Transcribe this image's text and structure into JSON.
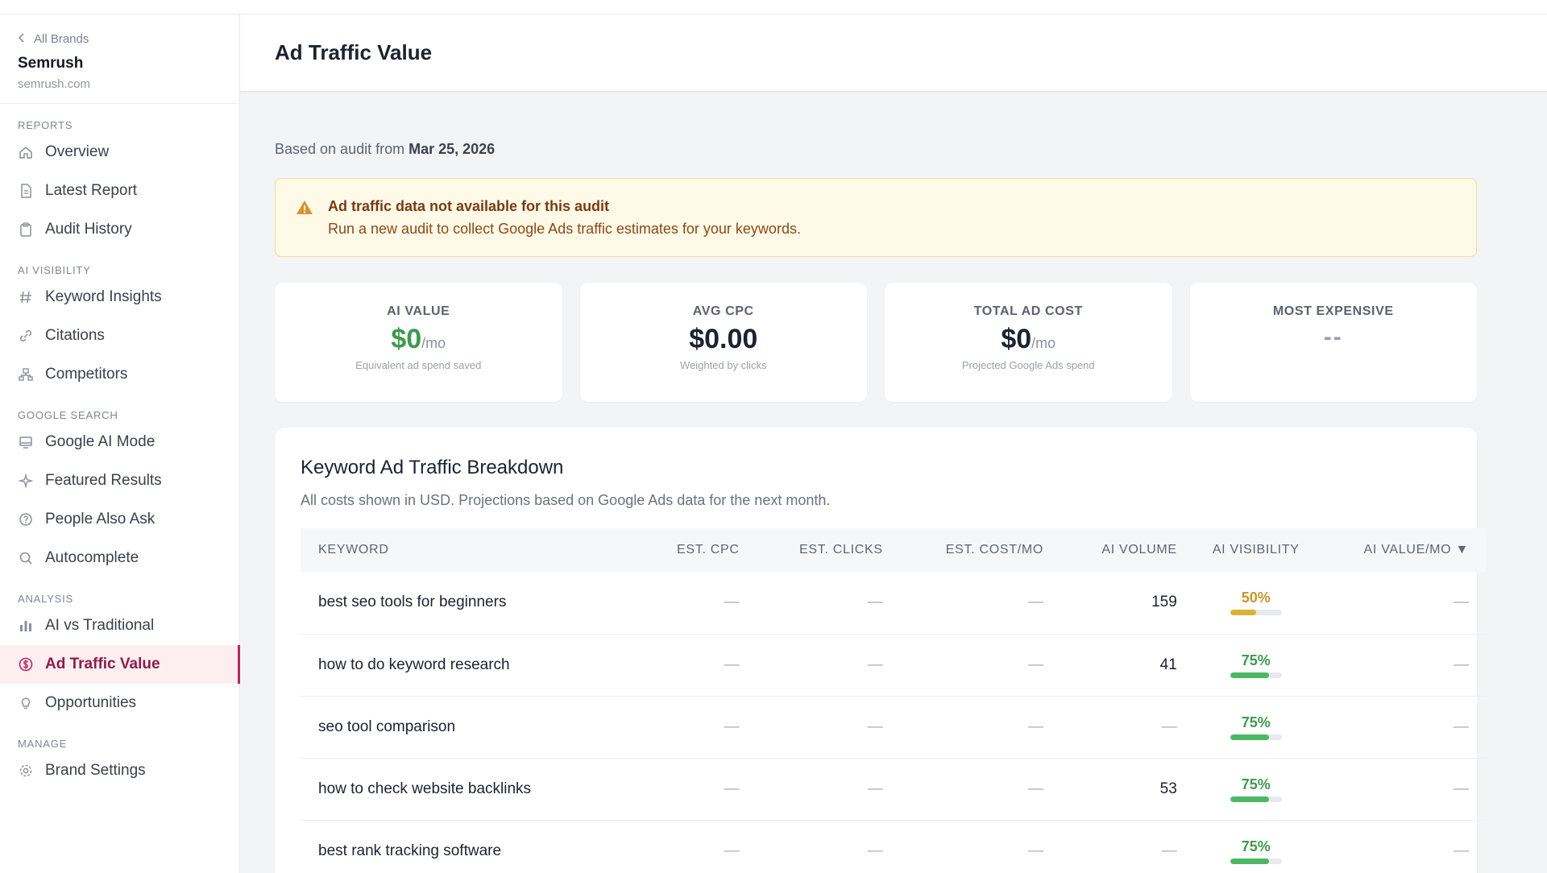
{
  "sidebar": {
    "back_label": "All Brands",
    "brand_name": "Semrush",
    "brand_domain": "semrush.com",
    "sections": [
      {
        "title": "REPORTS",
        "items": [
          {
            "label": "Overview",
            "icon": "home-icon"
          },
          {
            "label": "Latest Report",
            "icon": "document-icon"
          },
          {
            "label": "Audit History",
            "icon": "clipboard-icon"
          }
        ]
      },
      {
        "title": "AI VISIBILITY",
        "items": [
          {
            "label": "Keyword Insights",
            "icon": "hash-icon"
          },
          {
            "label": "Citations",
            "icon": "link-icon"
          },
          {
            "label": "Competitors",
            "icon": "hierarchy-icon"
          }
        ]
      },
      {
        "title": "GOOGLE SEARCH",
        "items": [
          {
            "label": "Google AI Mode",
            "icon": "monitor-icon"
          },
          {
            "label": "Featured Results",
            "icon": "sparkle-icon"
          },
          {
            "label": "People Also Ask",
            "icon": "question-circle-icon"
          },
          {
            "label": "Autocomplete",
            "icon": "search-icon"
          }
        ]
      },
      {
        "title": "ANALYSIS",
        "items": [
          {
            "label": "AI vs Traditional",
            "icon": "bar-chart-icon"
          },
          {
            "label": "Ad Traffic Value",
            "icon": "dollar-circle-icon",
            "active": true
          },
          {
            "label": "Opportunities",
            "icon": "lightbulb-icon"
          }
        ]
      },
      {
        "title": "MANAGE",
        "items": [
          {
            "label": "Brand Settings",
            "icon": "gear-icon"
          }
        ]
      }
    ]
  },
  "header": {
    "title": "Ad Traffic Value"
  },
  "audit": {
    "prefix": "Based on audit from ",
    "date": "Mar 25, 2026"
  },
  "alert": {
    "title": "Ad traffic data not available for this audit",
    "message": "Run a new audit to collect Google Ads traffic estimates for your keywords.",
    "icon": "warning-triangle-icon"
  },
  "cards": [
    {
      "label": "AI VALUE",
      "value": "$0",
      "unit": "/mo",
      "sub": "Equivalent ad spend saved",
      "green": true
    },
    {
      "label": "AVG CPC",
      "value": "$0.00",
      "unit": "",
      "sub": "Weighted by clicks"
    },
    {
      "label": "TOTAL AD COST",
      "value": "$0",
      "unit": "/mo",
      "sub": "Projected Google Ads spend"
    },
    {
      "label": "MOST EXPENSIVE",
      "value": "--",
      "unit": "",
      "sub": "",
      "dash": true
    }
  ],
  "table": {
    "title": "Keyword Ad Traffic Breakdown",
    "subtitle": "All costs shown in USD. Projections based on Google Ads data for the next month.",
    "columns": [
      "KEYWORD",
      "EST. CPC",
      "EST. CLICKS",
      "EST. COST/MO",
      "AI VOLUME",
      "AI VISIBILITY",
      "AI VALUE/MO ▼"
    ],
    "rows": [
      {
        "keyword": "best seo tools for beginners",
        "cpc": "—",
        "clicks": "—",
        "cost": "—",
        "volume": "159",
        "visibility": "50%",
        "visibility_value": 0.5,
        "value": "—"
      },
      {
        "keyword": "how to do keyword research",
        "cpc": "—",
        "clicks": "—",
        "cost": "—",
        "volume": "41",
        "visibility": "75%",
        "visibility_value": 0.75,
        "value": "—"
      },
      {
        "keyword": "seo tool comparison",
        "cpc": "—",
        "clicks": "—",
        "cost": "—",
        "volume": "—",
        "visibility": "75%",
        "visibility_value": 0.75,
        "value": "—"
      },
      {
        "keyword": "how to check website backlinks",
        "cpc": "—",
        "clicks": "—",
        "cost": "—",
        "volume": "53",
        "visibility": "75%",
        "visibility_value": 0.75,
        "value": "—"
      },
      {
        "keyword": "best rank tracking software",
        "cpc": "—",
        "clicks": "—",
        "cost": "—",
        "volume": "—",
        "visibility": "75%",
        "visibility_value": 0.75,
        "value": "—"
      }
    ]
  },
  "colors": {
    "accent": "#b6285e",
    "green": "#3f9a4e",
    "bar_green": "#4cb864",
    "amber": "#c8972a",
    "bar_amber": "#dbb236"
  }
}
